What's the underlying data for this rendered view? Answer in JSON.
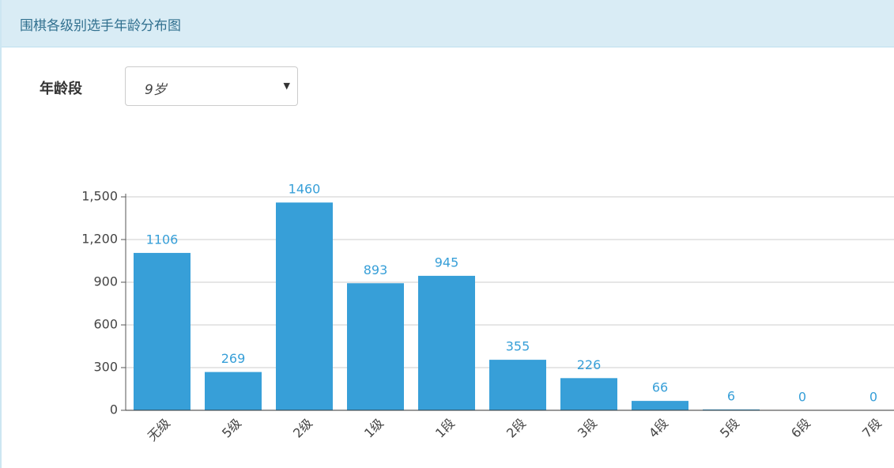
{
  "header": {
    "title": "围棋各级别选手年龄分布图"
  },
  "filter": {
    "label": "年龄段",
    "value": "9岁"
  },
  "chart_data": {
    "type": "bar",
    "categories": [
      "无级",
      "5级",
      "2级",
      "1级",
      "1段",
      "2段",
      "3段",
      "4段",
      "5段",
      "6段",
      "7段"
    ],
    "values": [
      1106,
      269,
      1460,
      893,
      945,
      355,
      226,
      66,
      6,
      0,
      0
    ],
    "color": "#379fd8",
    "ylim": [
      0,
      1500
    ],
    "yticks": [
      0,
      300,
      600,
      900,
      {
        "value": 1200,
        "label": "1,200"
      },
      {
        "value": 1500,
        "label": "1,500"
      }
    ],
    "grid": true
  }
}
